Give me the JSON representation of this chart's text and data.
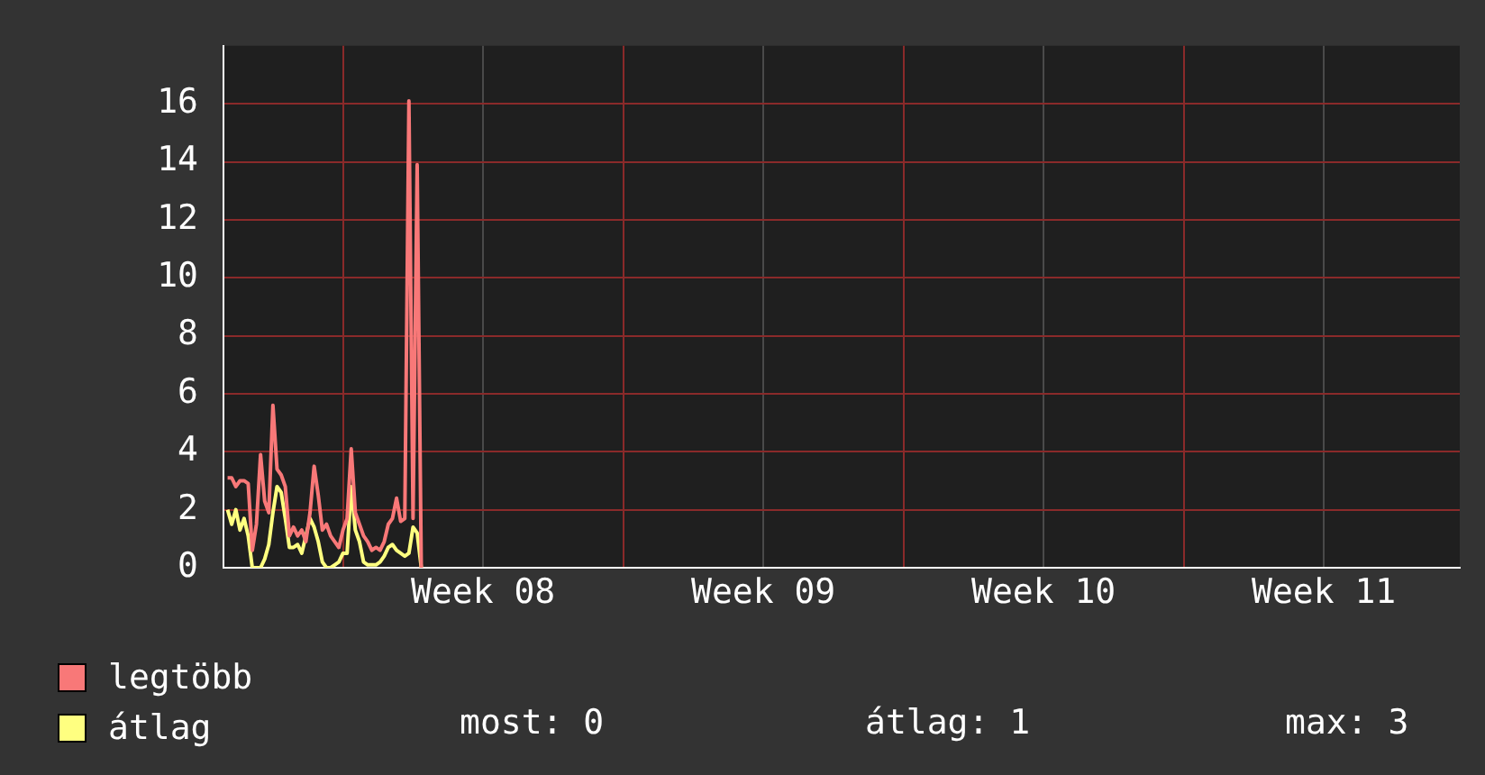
{
  "chart_data": {
    "type": "line",
    "ylim": [
      0,
      18
    ],
    "categories": [
      null,
      null,
      null,
      null,
      null,
      null,
      null,
      null,
      null,
      null,
      null,
      null,
      null,
      null,
      null,
      null,
      null,
      null,
      null,
      null,
      null,
      null,
      null,
      null,
      null,
      null,
      null,
      null,
      null,
      null,
      null,
      null,
      null,
      null,
      null,
      null,
      null,
      null,
      null,
      null,
      null,
      null,
      null,
      null,
      null,
      null,
      null,
      null,
      null,
      null,
      null,
      null,
      null,
      null,
      null,
      null,
      null,
      null,
      null,
      null,
      null,
      null,
      null,
      "Week 08",
      null,
      null,
      null,
      null,
      null,
      null,
      null,
      null,
      null,
      null,
      null,
      null,
      null,
      null,
      null,
      null,
      null,
      null,
      null,
      null,
      null,
      null,
      null,
      null,
      null,
      null,
      null,
      null,
      null,
      null,
      null,
      null,
      null,
      null,
      null,
      null,
      null,
      null,
      null,
      null,
      null,
      null,
      null,
      null,
      null,
      null,
      null,
      null,
      null,
      null,
      null,
      null,
      null,
      null,
      null,
      null,
      null,
      null,
      null,
      null,
      null,
      null,
      null,
      null,
      null,
      null,
      null,
      "Week 09",
      null,
      null,
      null,
      null,
      null,
      null,
      null,
      null,
      null,
      null,
      null,
      null,
      null,
      null,
      null,
      null,
      null,
      null,
      null,
      null,
      null,
      null,
      null,
      null,
      null,
      null,
      null,
      null,
      null,
      null,
      null,
      null,
      null,
      null,
      null,
      null,
      null,
      null,
      null,
      null,
      null,
      null,
      null,
      null,
      null,
      null,
      null,
      null,
      null,
      null,
      null,
      null,
      null,
      null,
      null,
      null,
      null,
      null,
      null,
      null,
      null,
      null,
      null,
      null,
      null,
      null,
      null,
      "Week 10",
      null,
      null,
      null,
      null,
      null,
      null,
      null,
      null,
      null,
      null,
      null,
      null,
      null,
      null,
      null,
      null,
      null,
      null,
      null,
      null,
      null,
      null,
      null,
      null,
      null,
      null,
      null,
      null,
      null,
      null,
      null,
      null,
      null,
      null,
      null,
      null,
      null,
      null,
      null,
      null,
      null,
      null,
      null,
      null,
      null,
      null,
      null,
      null,
      null,
      null,
      null,
      null,
      null,
      null,
      null,
      null,
      null,
      null,
      null,
      null,
      null,
      null,
      null,
      null,
      null,
      null,
      null,
      "Week 11",
      null,
      null,
      null,
      null,
      null,
      null,
      null,
      null,
      null,
      null,
      null,
      null,
      null,
      null,
      null,
      null,
      null,
      null,
      null,
      null,
      null,
      null,
      null,
      null,
      null,
      null,
      null,
      null,
      null,
      null,
      null,
      null,
      null
    ],
    "yticks": [
      0,
      2,
      4,
      6,
      8,
      10,
      12,
      14,
      16
    ],
    "grid": true,
    "legend": "bottom",
    "marker": "none",
    "line_style": "solid",
    "annotations": [
      "most: 0",
      "átlag: 1",
      "max: 3"
    ],
    "series": [
      {
        "name": "legtöbb",
        "color": "#f87878",
        "values": [
          null,
          3.1,
          3.1,
          2.8,
          3.0,
          3.0,
          2.9,
          0.6,
          1.5,
          3.9,
          2.3,
          1.9,
          5.6,
          3.4,
          3.2,
          2.8,
          1.1,
          1.4,
          1.1,
          1.3,
          0.9,
          1.9,
          3.5,
          2.5,
          1.3,
          1.5,
          1.1,
          0.9,
          0.7,
          1.3,
          1.7,
          4.1,
          1.9,
          1.5,
          1.1,
          0.9,
          0.6,
          0.7,
          0.6,
          0.9,
          1.5,
          1.7,
          2.4,
          1.6,
          1.7,
          16.1,
          1.7,
          13.9,
          0,
          null,
          null,
          null,
          null,
          null,
          null,
          null,
          null,
          null,
          null,
          null,
          null,
          null,
          null,
          null,
          null,
          null,
          null,
          null,
          null,
          null,
          null,
          null,
          null,
          null,
          null,
          null,
          null,
          null,
          null,
          null,
          null,
          null,
          null,
          null,
          null,
          null,
          null,
          null,
          null,
          null,
          null,
          null,
          null,
          null,
          null,
          null,
          null,
          null,
          null,
          null,
          null,
          null,
          null,
          null,
          null,
          null,
          null,
          null,
          null,
          null,
          null,
          null,
          null,
          null,
          null,
          null,
          null,
          null,
          null,
          null,
          null,
          null,
          null,
          null,
          null,
          null,
          null,
          null,
          null,
          null,
          null,
          null,
          null,
          null,
          null,
          null,
          null,
          null,
          null,
          null,
          null,
          null,
          null,
          null,
          null,
          null,
          null,
          null,
          null,
          null,
          null,
          null,
          null,
          null,
          null,
          null,
          null,
          null,
          null,
          null,
          null,
          null,
          null,
          null,
          null,
          null,
          null,
          null,
          null,
          null,
          null,
          null,
          null,
          null,
          null,
          null,
          null,
          null,
          null,
          null,
          null,
          null,
          null,
          null,
          null,
          null,
          null,
          null,
          null,
          null,
          null,
          null,
          null,
          null,
          null,
          null,
          null,
          null,
          null,
          null,
          null,
          null,
          null,
          null,
          null,
          null,
          null,
          null,
          null,
          null,
          null,
          null,
          null,
          null,
          null,
          null,
          null,
          null,
          null,
          null,
          null,
          null,
          null,
          null,
          null,
          null,
          null,
          null,
          null,
          null,
          null,
          null,
          null,
          null,
          null,
          null,
          null,
          null,
          null,
          null,
          null,
          null,
          null,
          null,
          null,
          null,
          null,
          null,
          null,
          null,
          null,
          null,
          null,
          null,
          null,
          null,
          null,
          null,
          null,
          null,
          null,
          null,
          null,
          null,
          null,
          null,
          null,
          null,
          null,
          null,
          null,
          null,
          null,
          null,
          null,
          null,
          null,
          null,
          null,
          null,
          null,
          null,
          null,
          null,
          null,
          null,
          null,
          null,
          null,
          null,
          null,
          null,
          null,
          null,
          null,
          null,
          null,
          null,
          null,
          null,
          null
        ]
      },
      {
        "name": "átlag",
        "color": "#ffff80",
        "values": [
          null,
          2.0,
          1.5,
          2.0,
          1.3,
          1.7,
          1.1,
          0,
          0,
          0,
          0.3,
          0.8,
          1.9,
          2.8,
          2.6,
          1.7,
          0.7,
          0.7,
          0.8,
          0.5,
          1.1,
          1.7,
          1.4,
          0.9,
          0.2,
          0,
          0,
          0.1,
          0.2,
          0.5,
          0.5,
          2.8,
          1.3,
          0.9,
          0.2,
          0.1,
          0.1,
          0.1,
          0.2,
          0.4,
          0.7,
          0.8,
          0.6,
          0.5,
          0.4,
          0.5,
          1.4,
          1.2,
          0,
          null,
          null,
          null,
          null,
          null,
          null,
          null,
          null,
          null,
          null,
          null,
          null,
          null,
          null,
          null,
          null,
          null,
          null,
          null,
          null,
          null,
          null,
          null,
          null,
          null,
          null,
          null,
          null,
          null,
          null,
          null,
          null,
          null,
          null,
          null,
          null,
          null,
          null,
          null,
          null,
          null,
          null,
          null,
          null,
          null,
          null,
          null,
          null,
          null,
          null,
          null,
          null,
          null,
          null,
          null,
          null,
          null,
          null,
          null,
          null,
          null,
          null,
          null,
          null,
          null,
          null,
          null,
          null,
          null,
          null,
          null,
          null,
          null,
          null,
          null,
          null,
          null,
          null,
          null,
          null,
          null,
          null,
          null,
          null,
          null,
          null,
          null,
          null,
          null,
          null,
          null,
          null,
          null,
          null,
          null,
          null,
          null,
          null,
          null,
          null,
          null,
          null,
          null,
          null,
          null,
          null,
          null,
          null,
          null,
          null,
          null,
          null,
          null,
          null,
          null,
          null,
          null,
          null,
          null,
          null,
          null,
          null,
          null,
          null,
          null,
          null,
          null,
          null,
          null,
          null,
          null,
          null,
          null,
          null,
          null,
          null,
          null,
          null,
          null,
          null,
          null,
          null,
          null,
          null,
          null,
          null,
          null,
          null,
          null,
          null,
          null,
          null,
          null,
          null,
          null,
          null,
          null,
          null,
          null,
          null,
          null,
          null,
          null,
          null,
          null,
          null,
          null,
          null,
          null,
          null,
          null,
          null,
          null,
          null,
          null,
          null,
          null,
          null,
          null,
          null,
          null,
          null,
          null,
          null,
          null,
          null,
          null,
          null,
          null,
          null,
          null,
          null,
          null,
          null,
          null,
          null,
          null,
          null,
          null,
          null,
          null,
          null,
          null,
          null,
          null,
          null,
          null,
          null,
          null,
          null,
          null,
          null,
          null,
          null,
          null,
          null,
          null,
          null,
          null,
          null,
          null,
          null,
          null,
          null,
          null,
          null,
          null,
          null,
          null,
          null,
          null,
          null,
          null,
          null,
          null,
          null,
          null,
          null,
          null,
          null,
          null,
          null,
          null,
          null,
          null,
          null,
          null,
          null,
          null,
          null,
          null,
          null
        ]
      }
    ]
  }
}
